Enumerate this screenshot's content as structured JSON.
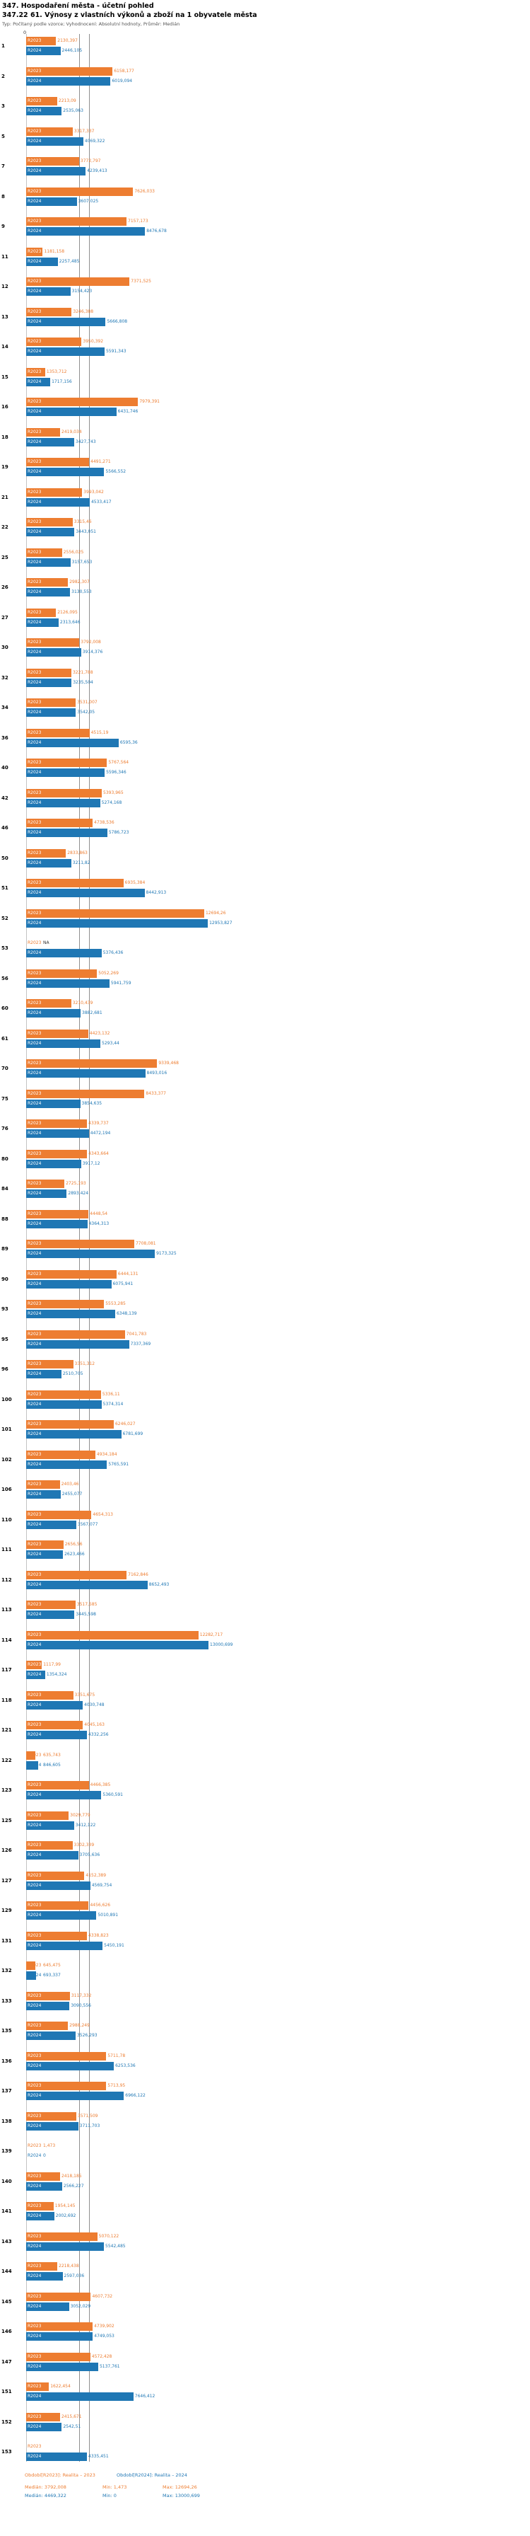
{
  "header": {
    "title": "347. Hospodaření města - účetní pohled",
    "subtitle": "347.22 61. Výnosy z vlastních výkonů a zboží na 1 obyvatele města",
    "meta": "Typ: Počítaný podle vzorce; Vyhodnocení: Absolutní hodnoty, Průměr: Medián"
  },
  "axis": {
    "zero": "0"
  },
  "colors": {
    "series_2023": "#ED7D31",
    "series_2024": "#1F77B4",
    "median_line": "#8f8f8f"
  },
  "legend": {
    "r2023": "Období[R2023]: Realita – 2023",
    "r2024": "Období[R2024]: Realita – 2024"
  },
  "stats": {
    "r2023": {
      "median": "Medián: 3792,008",
      "min": "Min: 1,473",
      "max": "Max: 12694,26"
    },
    "r2024": {
      "median": "Medián: 4469,322",
      "min": "Min: 0",
      "max": "Max: 13000,699"
    }
  },
  "chart_data": {
    "type": "bar",
    "orientation": "horizontal",
    "series_labels": [
      "R2023",
      "R2024"
    ],
    "medians": {
      "r2023": 3792.008,
      "r2024": 4469.322
    },
    "xmax": 13100,
    "rows": [
      [
        "1",
        "2130,397",
        "2446,105"
      ],
      [
        "2",
        "6158,177",
        "6019,094"
      ],
      [
        "3",
        "2213,09",
        "2535,063"
      ],
      [
        "5",
        "3317,337",
        "4069,322"
      ],
      [
        "7",
        "3772,797",
        "4239,413"
      ],
      [
        "8",
        "7626,033",
        "3607,025"
      ],
      [
        "9",
        "7157,173",
        "8476,678"
      ],
      [
        "11",
        "1181,158",
        "2257,485"
      ],
      [
        "12",
        "7371,525",
        "3154,423"
      ],
      [
        "13",
        "3246,388",
        "5666,808"
      ],
      [
        "14",
        "3950,392",
        "5591,343"
      ],
      [
        "15",
        "1353,712",
        "1717,156"
      ],
      [
        "16",
        "7979,391",
        "6431,746"
      ],
      [
        "18",
        "2419,034",
        "3427,743"
      ],
      [
        "19",
        "4491,271",
        "5566,552"
      ],
      [
        "21",
        "3993,042",
        "4533,417"
      ],
      [
        "22",
        "3315,46",
        "3443,051"
      ],
      [
        "25",
        "2556,025",
        "3157,653"
      ],
      [
        "26",
        "2982,307",
        "3130,553"
      ],
      [
        "27",
        "2126,095",
        "2313,646"
      ],
      [
        "30",
        "3792,008",
        "3914,376"
      ],
      [
        "32",
        "3221,788",
        "3235,504"
      ],
      [
        "34",
        "3531,007",
        "3542,05"
      ],
      [
        "36",
        "4515,19",
        "6595,36"
      ],
      [
        "40",
        "5767,564",
        "5596,346"
      ],
      [
        "42",
        "5393,965",
        "5274,168"
      ],
      [
        "46",
        "4738,536",
        "5786,723"
      ],
      [
        "50",
        "2833,863",
        "3211,82"
      ],
      [
        "51",
        "6935,384",
        "8442,913"
      ],
      [
        "52",
        "12694,26",
        "12953,827"
      ],
      [
        "53",
        "NA",
        "5376,436"
      ],
      [
        "56",
        "5052,269",
        "5941,759"
      ],
      [
        "60",
        "3210,439",
        "3882,681"
      ],
      [
        "61",
        "4423,132",
        "5293,44"
      ],
      [
        "70",
        "9339,468",
        "8493,016"
      ],
      [
        "75",
        "8433,377",
        "3854,635"
      ],
      [
        "76",
        "4339,737",
        "4472,194"
      ],
      [
        "80",
        "4343,664",
        "3917,12"
      ],
      [
        "84",
        "2725,193",
        "2893,424"
      ],
      [
        "88",
        "4448,54",
        "4364,313"
      ],
      [
        "89",
        "7708,081",
        "9173,325"
      ],
      [
        "90",
        "6444,131",
        "6075,941"
      ],
      [
        "93",
        "5553,285",
        "6348,139"
      ],
      [
        "95",
        "7041,783",
        "7337,369"
      ],
      [
        "96",
        "3351,312",
        "2510,705"
      ],
      [
        "100",
        "5336,11",
        "5374,314"
      ],
      [
        "101",
        "6246,027",
        "6781,699"
      ],
      [
        "102",
        "4934,184",
        "5765,591"
      ],
      [
        "106",
        "2403,46",
        "2455,077"
      ],
      [
        "110",
        "4654,313",
        "3567,077"
      ],
      [
        "111",
        "2656,56",
        "2623,466"
      ],
      [
        "112",
        "7162,846",
        "8652,493"
      ],
      [
        "113",
        "3517,585",
        "3445,598"
      ],
      [
        "114",
        "12282,717",
        "13000,699"
      ],
      [
        "117",
        "1117,99",
        "1354,324"
      ],
      [
        "118",
        "3351,675",
        "4030,748"
      ],
      [
        "121",
        "4045,163",
        "4332,256"
      ],
      [
        "122",
        "635,743",
        "846,605"
      ],
      [
        "123",
        "4466,385",
        "5360,591"
      ],
      [
        "125",
        "3029,779",
        "3412,122"
      ],
      [
        "126",
        "3302,339",
        "3705,636"
      ],
      [
        "127",
        "4152,389",
        "4569,754"
      ],
      [
        "129",
        "4456,626",
        "5010,891"
      ],
      [
        "131",
        "4338,823",
        "5450,191"
      ],
      [
        "132",
        "645,475",
        "693,337"
      ],
      [
        "133",
        "3117,332",
        "3090,556"
      ],
      [
        "135",
        "2988,249",
        "3526,293"
      ],
      [
        "136",
        "5711,78",
        "6253,536"
      ],
      [
        "137",
        "5713,95",
        "6966,122"
      ],
      [
        "138",
        "3571,509",
        "3711,703"
      ],
      [
        "139",
        "1,473",
        "0"
      ],
      [
        "140",
        "2418,185",
        "2566,227"
      ],
      [
        "141",
        "1954,145",
        "2002,692"
      ],
      [
        "143",
        "5070,122",
        "5542,485"
      ],
      [
        "144",
        "2218,438",
        "2597,036"
      ],
      [
        "145",
        "4607,732",
        "3052,029"
      ],
      [
        "146",
        "4739,902",
        "4749,053"
      ],
      [
        "147",
        "4572,428",
        "5137,761"
      ],
      [
        "151",
        "1622,454",
        "7646,412"
      ],
      [
        "152",
        "2415,671",
        "2542,51"
      ],
      [
        "153",
        null,
        "4335,451"
      ]
    ]
  }
}
